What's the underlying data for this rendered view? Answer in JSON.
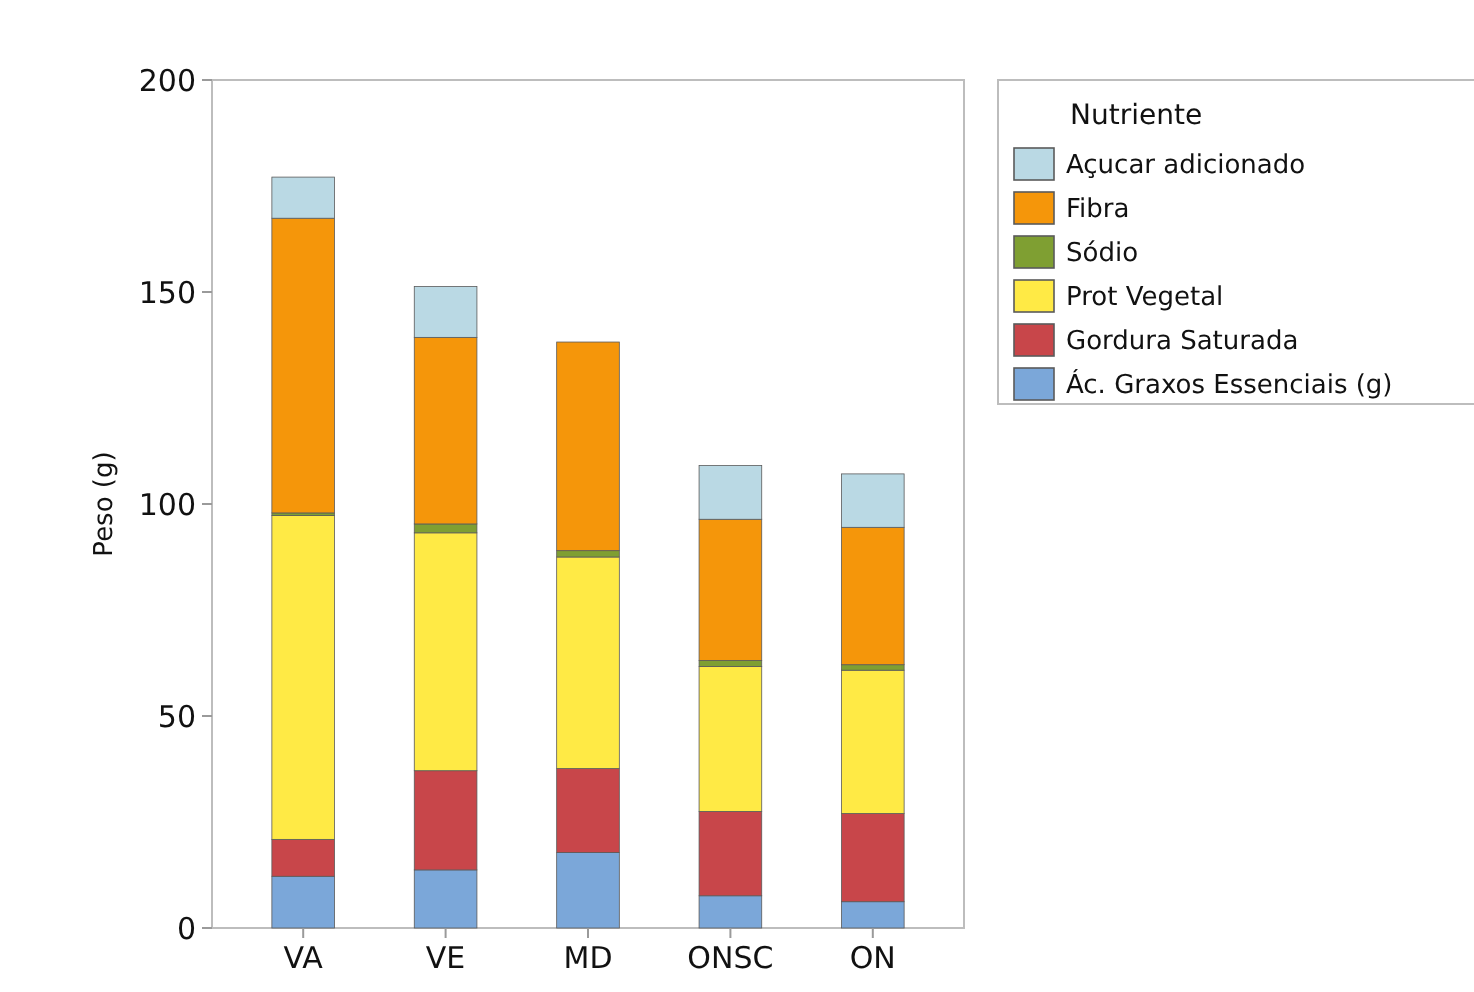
{
  "chart_data": {
    "type": "bar",
    "stacked": true,
    "ylabel": "Peso (g)",
    "legend_title": "Nutriente",
    "legend": "right",
    "categories": [
      "VA",
      "VE",
      "MD",
      "ONSC",
      "ON"
    ],
    "ylim": [
      0,
      200
    ],
    "yticks": [
      0,
      50,
      100,
      150,
      200
    ],
    "grid": false,
    "series": [
      {
        "name": "Ác. Graxos Essenciais (g)",
        "color": "#7ba7d9",
        "values": [
          12.2,
          13.7,
          17.8,
          7.6,
          6.2
        ]
      },
      {
        "name": "Gordura Saturada",
        "color": "#c8464a",
        "values": [
          8.7,
          23.4,
          19.8,
          19.9,
          20.8
        ]
      },
      {
        "name": "Prot Vegetal",
        "color": "#ffea45",
        "values": [
          76.4,
          56.1,
          49.9,
          34.2,
          33.8
        ]
      },
      {
        "name": "Sódio",
        "color": "#7f9f32",
        "values": [
          0.6,
          2.1,
          1.5,
          1.4,
          1.3
        ]
      },
      {
        "name": "Fibra",
        "color": "#f5960a",
        "values": [
          69.5,
          44,
          49.2,
          33.3,
          32.4
        ]
      },
      {
        "name": "Açucar adicionado",
        "color": "#bad9e4",
        "values": [
          9.7,
          12,
          0,
          12.7,
          12.6
        ]
      }
    ]
  }
}
